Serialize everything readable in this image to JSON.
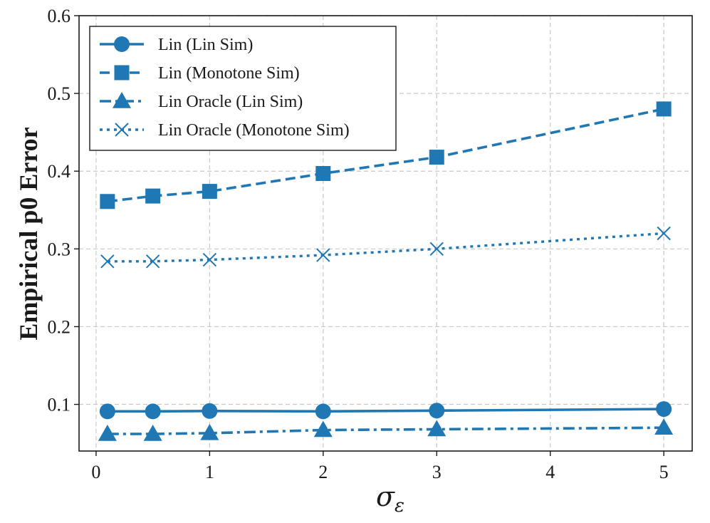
{
  "chart_data": {
    "type": "line",
    "title": "",
    "xlabel": "σ",
    "xlabel_sub": "ε",
    "ylabel": "Empirical p0 Error",
    "xlim": [
      -0.15,
      5.25
    ],
    "ylim": [
      0.04,
      0.6
    ],
    "xticks": [
      0,
      1,
      2,
      3,
      4,
      5
    ],
    "yticks": [
      0.1,
      0.2,
      0.3,
      0.4,
      0.5,
      0.6
    ],
    "xtick_labels": [
      "0",
      "1",
      "2",
      "3",
      "4",
      "5"
    ],
    "ytick_labels": [
      "0.1",
      "0.2",
      "0.3",
      "0.4",
      "0.5",
      "0.6"
    ],
    "grid": true,
    "legend_position": "top-left",
    "x": [
      0.1,
      0.5,
      1,
      2,
      3,
      5
    ],
    "series": [
      {
        "name": "Lin (Lin Sim)",
        "values": [
          0.091,
          0.091,
          0.0915,
          0.091,
          0.092,
          0.094
        ],
        "linestyle": "solid",
        "marker": "circle",
        "color": "#1f77b4"
      },
      {
        "name": "Lin (Monotone Sim)",
        "values": [
          0.361,
          0.368,
          0.374,
          0.397,
          0.418,
          0.48
        ],
        "linestyle": "dashed",
        "marker": "square",
        "color": "#1f77b4"
      },
      {
        "name": "Lin Oracle (Lin Sim)",
        "values": [
          0.062,
          0.062,
          0.063,
          0.067,
          0.068,
          0.07
        ],
        "linestyle": "dashdot",
        "marker": "triangle",
        "color": "#1f77b4"
      },
      {
        "name": "Lin Oracle (Monotone Sim)",
        "values": [
          0.284,
          0.284,
          0.286,
          0.292,
          0.3,
          0.32
        ],
        "linestyle": "dotted",
        "marker": "x",
        "color": "#1f77b4"
      }
    ]
  }
}
